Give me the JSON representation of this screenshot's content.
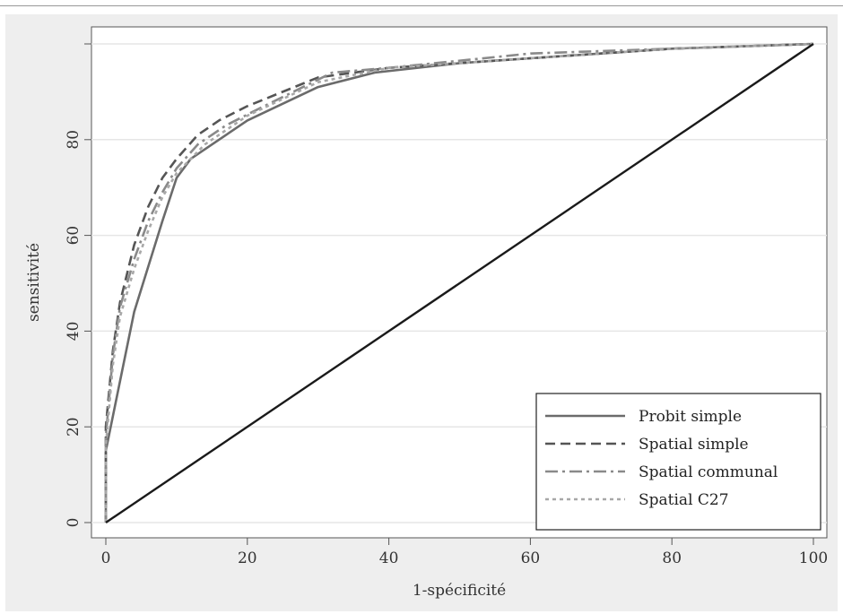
{
  "chart_data": {
    "type": "line",
    "title": "",
    "xlabel": "1-spécificité",
    "ylabel": "sensitivité",
    "xlim": [
      0,
      100
    ],
    "ylim": [
      0,
      100
    ],
    "xticks": [
      0,
      20,
      40,
      60,
      80,
      100
    ],
    "yticks": [
      0,
      20,
      40,
      60,
      80
    ],
    "xtick_labels": [
      "0",
      "20",
      "40",
      "60",
      "80",
      "100"
    ],
    "ytick_labels": [
      "0",
      "20",
      "40",
      "60",
      "80"
    ],
    "grid": "horizontal",
    "legend_position": "bottom-right",
    "series": [
      {
        "name": "Probit simple",
        "style": "solid",
        "color": "#6b6b6b",
        "points": [
          [
            0,
            0
          ],
          [
            0,
            15
          ],
          [
            4,
            44
          ],
          [
            8,
            63
          ],
          [
            10,
            72
          ],
          [
            12,
            76
          ],
          [
            20,
            84
          ],
          [
            30,
            91
          ],
          [
            38,
            94
          ],
          [
            50,
            96
          ],
          [
            60,
            97
          ],
          [
            80,
            99
          ],
          [
            100,
            100
          ]
        ]
      },
      {
        "name": "Spatial simple",
        "style": "dashed",
        "color": "#555555",
        "points": [
          [
            0,
            0
          ],
          [
            0,
            20
          ],
          [
            1,
            36
          ],
          [
            2,
            46
          ],
          [
            4,
            58
          ],
          [
            6,
            66
          ],
          [
            8,
            72
          ],
          [
            10,
            76
          ],
          [
            13,
            81
          ],
          [
            16,
            84
          ],
          [
            20,
            87
          ],
          [
            30,
            93
          ],
          [
            40,
            95
          ],
          [
            60,
            97
          ],
          [
            80,
            99
          ],
          [
            100,
            100
          ]
        ]
      },
      {
        "name": "Spatial communal",
        "style": "dashdot",
        "color": "#8a8a8a",
        "points": [
          [
            0,
            0
          ],
          [
            0,
            18
          ],
          [
            1,
            35
          ],
          [
            2,
            45
          ],
          [
            4,
            55
          ],
          [
            6,
            63
          ],
          [
            8,
            69
          ],
          [
            10,
            74
          ],
          [
            13,
            79
          ],
          [
            17,
            83
          ],
          [
            21,
            86
          ],
          [
            32,
            94
          ],
          [
            40,
            95
          ],
          [
            60,
            98
          ],
          [
            80,
            99
          ],
          [
            100,
            100
          ]
        ]
      },
      {
        "name": "Spatial C27",
        "style": "dotted",
        "color": "#a8a8a8",
        "points": [
          [
            0,
            0
          ],
          [
            0,
            16
          ],
          [
            1,
            33
          ],
          [
            2,
            43
          ],
          [
            4,
            53
          ],
          [
            6,
            61
          ],
          [
            8,
            68
          ],
          [
            10,
            73
          ],
          [
            14,
            79
          ],
          [
            20,
            85
          ],
          [
            30,
            92
          ],
          [
            40,
            95
          ],
          [
            60,
            97
          ],
          [
            80,
            99
          ],
          [
            100,
            100
          ]
        ]
      },
      {
        "name": "",
        "style": "solid",
        "color": "#1a1a1a",
        "points": [
          [
            0,
            0
          ],
          [
            100,
            100
          ]
        ]
      }
    ]
  }
}
